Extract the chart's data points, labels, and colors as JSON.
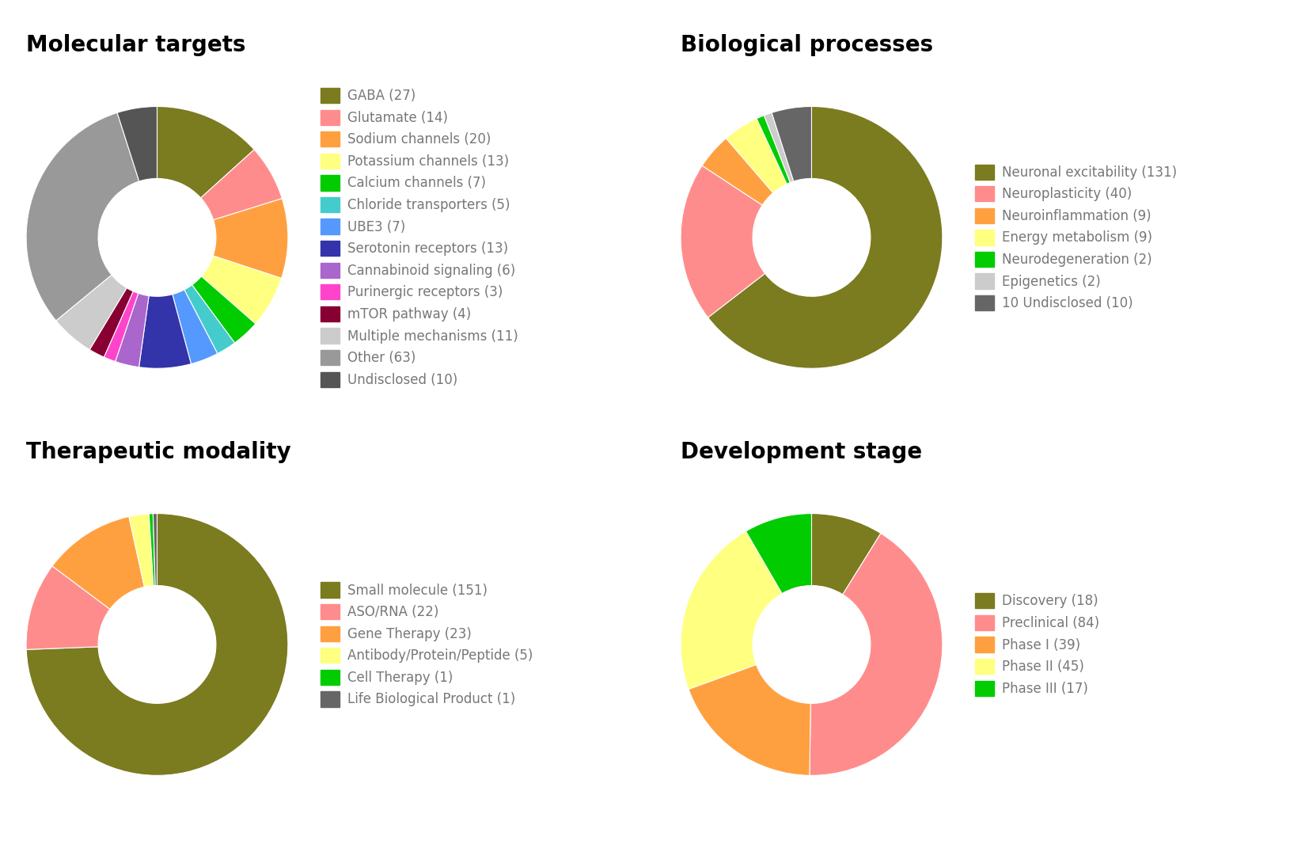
{
  "molecular_targets": {
    "title": "Molecular targets",
    "labels": [
      "GABA (27)",
      "Glutamate (14)",
      "Sodium channels (20)",
      "Potassium channels (13)",
      "Calcium channels (7)",
      "Chloride transporters (5)",
      "UBE3 (7)",
      "Serotonin receptors (13)",
      "Cannabinoid signaling (6)",
      "Purinergic receptors (3)",
      "mTOR pathway (4)",
      "Multiple mechanisms (11)",
      "Other (63)",
      "Undisclosed (10)"
    ],
    "values": [
      27,
      14,
      20,
      13,
      7,
      5,
      7,
      13,
      6,
      3,
      4,
      11,
      63,
      10
    ],
    "colors": [
      "#7B7B20",
      "#FF8C8C",
      "#FFA040",
      "#FFFF80",
      "#00CC00",
      "#44CCCC",
      "#5599FF",
      "#3333AA",
      "#AA66CC",
      "#FF44CC",
      "#880033",
      "#CCCCCC",
      "#999999",
      "#555555"
    ]
  },
  "biological_processes": {
    "title": "Biological processes",
    "labels": [
      "Neuronal excitability (131)",
      "Neuroplasticity (40)",
      "Neuroinflammation (9)",
      "Energy metabolism (9)",
      "Neurodegeneration (2)",
      "Epigenetics (2)",
      "10 Undisclosed (10)"
    ],
    "values": [
      131,
      40,
      9,
      9,
      2,
      2,
      10
    ],
    "colors": [
      "#7B7B20",
      "#FF8C8C",
      "#FFA040",
      "#FFFF80",
      "#00CC00",
      "#CCCCCC",
      "#666666"
    ]
  },
  "therapeutic_modality": {
    "title": "Therapeutic modality",
    "labels": [
      "Small molecule (151)",
      "ASO/RNA (22)",
      "Gene Therapy (23)",
      "Antibody/Protein/Peptide (5)",
      "Cell Therapy (1)",
      "Life Biological Product (1)"
    ],
    "values": [
      151,
      22,
      23,
      5,
      1,
      1
    ],
    "colors": [
      "#7B7B20",
      "#FF8C8C",
      "#FFA040",
      "#FFFF80",
      "#00CC00",
      "#666666"
    ]
  },
  "development_stage": {
    "title": "Development stage",
    "labels": [
      "Discovery (18)",
      "Preclinical (84)",
      "Phase I (39)",
      "Phase II (45)",
      "Phase III (17)"
    ],
    "values": [
      18,
      84,
      39,
      45,
      17
    ],
    "colors": [
      "#7B7B20",
      "#FF8C8C",
      "#FFA040",
      "#FFFF80",
      "#00CC00"
    ]
  },
  "title_fontsize": 20,
  "legend_fontsize": 12,
  "legend_text_color": "#777777",
  "bg_color": "#ffffff"
}
